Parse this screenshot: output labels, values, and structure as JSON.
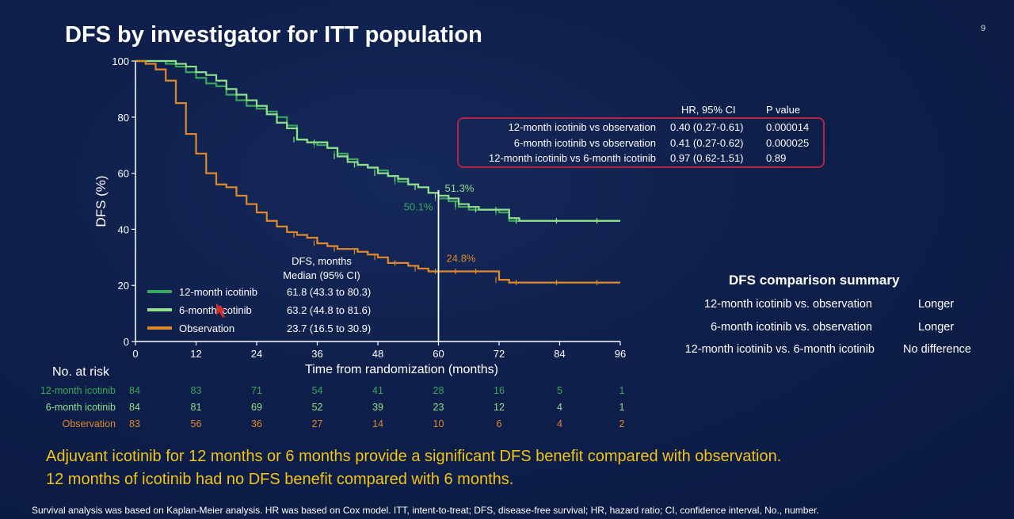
{
  "page": {
    "title": "DFS by investigator for ITT population",
    "page_number": "9"
  },
  "colors": {
    "icotinib_12": "#3aa65c",
    "icotinib_6": "#8fe08a",
    "observation": "#e0892b",
    "hr_box_border": "#b3253f",
    "conclusion_text": "#f2c318"
  },
  "chart_data": {
    "type": "line",
    "ylabel": "DFS (%)",
    "xlabel": "Time from randomization (months)",
    "xlim": [
      0,
      96
    ],
    "ylim": [
      0,
      100
    ],
    "x_ticks": [
      "0",
      "12",
      "24",
      "36",
      "48",
      "60",
      "72",
      "84",
      "96"
    ],
    "y_ticks": [
      "0",
      "20",
      "40",
      "60",
      "80",
      "100"
    ],
    "series": [
      {
        "name": "12-month icotinib",
        "color": "#3aa65c",
        "x": [
          0,
          2,
          4,
          6,
          8,
          10,
          12,
          14,
          16,
          18,
          20,
          22,
          24,
          26,
          28,
          30,
          32,
          34,
          36,
          38,
          40,
          42,
          44,
          46,
          48,
          50,
          52,
          54,
          56,
          58,
          60,
          62,
          64,
          66,
          68,
          70,
          72,
          74,
          76,
          80,
          84,
          88,
          92,
          96
        ],
        "y": [
          100,
          100,
          100,
          99,
          98,
          96,
          94,
          92,
          91,
          88,
          86,
          84,
          83,
          82,
          80,
          77,
          72,
          71,
          70,
          69,
          67,
          65,
          63,
          62,
          61,
          59,
          57,
          56,
          55,
          53,
          51,
          50,
          48,
          47,
          47,
          47,
          46,
          43,
          43,
          43,
          43,
          43,
          43,
          43
        ]
      },
      {
        "name": "6-month icotinib",
        "color": "#8fe08a",
        "x": [
          0,
          2,
          4,
          6,
          8,
          10,
          12,
          14,
          16,
          18,
          20,
          22,
          24,
          26,
          28,
          30,
          32,
          34,
          36,
          38,
          40,
          42,
          44,
          46,
          48,
          50,
          52,
          54,
          56,
          58,
          60,
          62,
          64,
          66,
          68,
          70,
          72,
          74,
          76,
          80,
          84,
          88,
          92,
          96
        ],
        "y": [
          100,
          100,
          100,
          100,
          99,
          98,
          96,
          95,
          93,
          90,
          88,
          86,
          84,
          81,
          78,
          76,
          72,
          71,
          71,
          69,
          66,
          64,
          63,
          62,
          60,
          59,
          58,
          56,
          55,
          53,
          52,
          51,
          49,
          48,
          47,
          47,
          47,
          44,
          43,
          43,
          43,
          43,
          43,
          43
        ]
      },
      {
        "name": "Observation",
        "color": "#e0892b",
        "x": [
          0,
          2,
          4,
          6,
          8,
          10,
          12,
          14,
          16,
          18,
          20,
          22,
          24,
          26,
          28,
          30,
          32,
          34,
          36,
          38,
          40,
          42,
          44,
          46,
          48,
          50,
          52,
          54,
          56,
          58,
          60,
          62,
          64,
          66,
          68,
          70,
          72,
          74,
          76,
          80,
          84,
          88,
          92,
          96
        ],
        "y": [
          100,
          99,
          97,
          93,
          85,
          74,
          67,
          60,
          56,
          55,
          52,
          49,
          46,
          43,
          41,
          39,
          38,
          37,
          35,
          34,
          33,
          33,
          32,
          31,
          30,
          28,
          28,
          27,
          26,
          25,
          25,
          25,
          25,
          25,
          25,
          25,
          22,
          21,
          21,
          21,
          21,
          21,
          21,
          21
        ]
      }
    ],
    "reference_line_x": 60,
    "annotations": [
      {
        "text": "51.3%",
        "series": "6-month icotinib"
      },
      {
        "text": "50.1%",
        "series": "12-month icotinib"
      },
      {
        "text": "24.8%",
        "series": "Observation"
      }
    ],
    "legend": {
      "header_line1": "DFS, months",
      "header_line2": "Median (95% CI)",
      "entries": [
        {
          "label": "12-month icotinib",
          "value": "61.8 (43.3 to 80.3)",
          "color": "#3aa65c"
        },
        {
          "label": "6-month icotinib",
          "value": "63.2 (44.8 to 81.6)",
          "color": "#8fe08a"
        },
        {
          "label": "Observation",
          "value": "23.7 (16.5 to 30.9)",
          "color": "#e0892b"
        }
      ]
    },
    "at_risk": {
      "title": "No. at risk",
      "rows": [
        {
          "label": "12-month icotinib",
          "color": "#3aa65c",
          "values": [
            "84",
            "83",
            "71",
            "54",
            "41",
            "28",
            "16",
            "5",
            "1"
          ]
        },
        {
          "label": "6-month icotinib",
          "color": "#8fe08a",
          "values": [
            "84",
            "81",
            "69",
            "52",
            "39",
            "23",
            "12",
            "4",
            "1"
          ]
        },
        {
          "label": "Observation",
          "color": "#e0892b",
          "values": [
            "83",
            "56",
            "36",
            "27",
            "14",
            "10",
            "6",
            "4",
            "2"
          ]
        }
      ]
    }
  },
  "hr_table": {
    "header_hr": "HR, 95% CI",
    "header_p": "P value",
    "rows": [
      {
        "comparison": "12-month icotinib vs observation",
        "hr": "0.40 (0.27-0.61)",
        "p": "0.000014"
      },
      {
        "comparison": "6-month icotinib vs observation",
        "hr": "0.41 (0.27-0.62)",
        "p": "0.000025"
      },
      {
        "comparison": "12-month icotinib vs 6-month icotinib",
        "hr": "0.97 (0.62-1.51)",
        "p": "0.89"
      }
    ]
  },
  "summary": {
    "title": "DFS comparison summary",
    "rows": [
      {
        "comparison": "12-month icotinib vs. observation",
        "result": "Longer"
      },
      {
        "comparison": "6-month icotinib vs. observation",
        "result": "Longer"
      },
      {
        "comparison": "12-month icotinib vs. 6-month icotinib",
        "result": "No difference"
      }
    ]
  },
  "conclusions": [
    "Adjuvant icotinib for 12 months or 6 months provide a significant DFS benefit compared with observation.",
    "12 months of icotinib had no DFS benefit compared with 6 months."
  ],
  "footnote": "Survival analysis was based on Kaplan-Meier analysis. HR was based on Cox model. ITT, intent-to-treat; DFS, disease-free survival; HR, hazard ratio; CI, confidence interval, No., number."
}
